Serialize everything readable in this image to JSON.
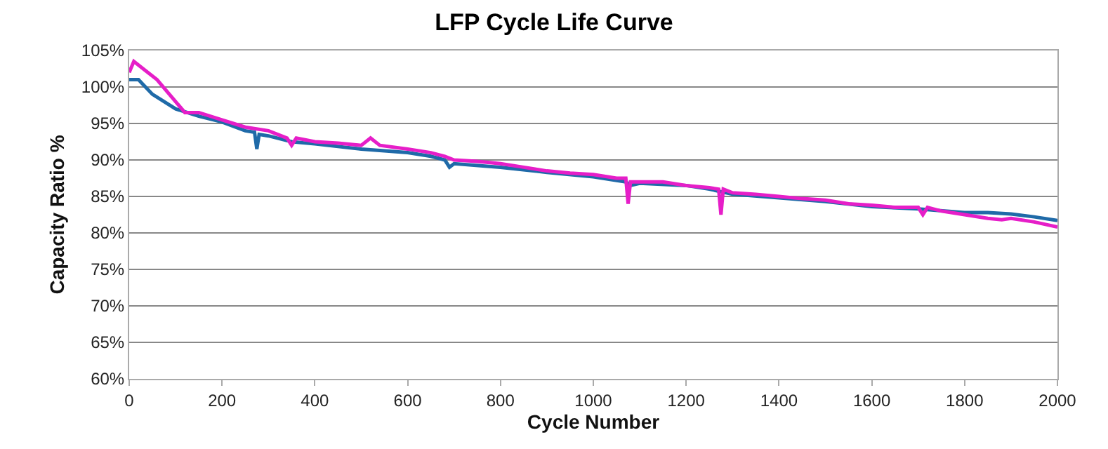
{
  "chart_data": {
    "type": "line",
    "title": "LFP Cycle Life Curve",
    "xlabel": "Cycle Number",
    "ylabel": "Capacity Ratio %",
    "xlim": [
      0,
      2000
    ],
    "xticks": [
      0,
      200,
      400,
      600,
      800,
      1000,
      1200,
      1400,
      1600,
      1800,
      2000
    ],
    "ylim": [
      60,
      105
    ],
    "yticks": [
      {
        "value": 60,
        "label": "60%"
      },
      {
        "value": 65,
        "label": "65%"
      },
      {
        "value": 70,
        "label": "70%"
      },
      {
        "value": 75,
        "label": "75%"
      },
      {
        "value": 80,
        "label": "80%"
      },
      {
        "value": 85,
        "label": "85%"
      },
      {
        "value": 90,
        "label": "90%"
      },
      {
        "value": 95,
        "label": "95%"
      },
      {
        "value": 100,
        "label": "100%"
      },
      {
        "value": 105,
        "label": "105%"
      }
    ],
    "grid": "y",
    "marker": "none",
    "line_style": "solid",
    "series": [
      {
        "color": "#1f6aa8",
        "x": [
          0,
          20,
          50,
          100,
          150,
          200,
          250,
          270,
          275,
          280,
          300,
          350,
          400,
          500,
          600,
          650,
          680,
          690,
          700,
          800,
          900,
          1000,
          1070,
          1080,
          1100,
          1200,
          1250,
          1300,
          1400,
          1500,
          1600,
          1700,
          1800,
          1850,
          1900,
          1950,
          2000
        ],
        "values": [
          101,
          101,
          99,
          97,
          96,
          95.2,
          94,
          93.8,
          91.5,
          93.5,
          93.3,
          92.5,
          92.2,
          91.5,
          91,
          90.5,
          90,
          89,
          89.5,
          89,
          88.3,
          87.7,
          87,
          86.5,
          86.8,
          86.5,
          86,
          85.3,
          84.8,
          84.3,
          83.6,
          83.3,
          82.8,
          82.8,
          82.6,
          82.2,
          81.7
        ]
      },
      {
        "color": "#e61ec8",
        "x": [
          0,
          10,
          30,
          60,
          100,
          120,
          150,
          200,
          250,
          300,
          340,
          350,
          360,
          400,
          450,
          500,
          520,
          540,
          600,
          650,
          680,
          700,
          750,
          800,
          850,
          900,
          950,
          1000,
          1050,
          1070,
          1075,
          1080,
          1100,
          1150,
          1200,
          1250,
          1270,
          1275,
          1280,
          1300,
          1350,
          1400,
          1450,
          1500,
          1550,
          1600,
          1650,
          1700,
          1710,
          1720,
          1750,
          1800,
          1850,
          1880,
          1900,
          1950,
          2000
        ],
        "values": [
          102,
          103.5,
          102.5,
          101,
          98,
          96.5,
          96.5,
          95.5,
          94.5,
          94,
          93,
          92,
          93,
          92.5,
          92.3,
          92,
          93,
          92,
          91.5,
          91,
          90.5,
          90,
          89.8,
          89.5,
          89,
          88.5,
          88.2,
          88,
          87.5,
          87.5,
          84,
          87,
          87,
          87,
          86.5,
          86.2,
          86,
          82.5,
          86,
          85.5,
          85.3,
          85,
          84.7,
          84.5,
          84,
          83.8,
          83.5,
          83.5,
          82.5,
          83.5,
          83,
          82.5,
          82,
          81.8,
          82,
          81.5,
          80.8
        ]
      }
    ]
  }
}
